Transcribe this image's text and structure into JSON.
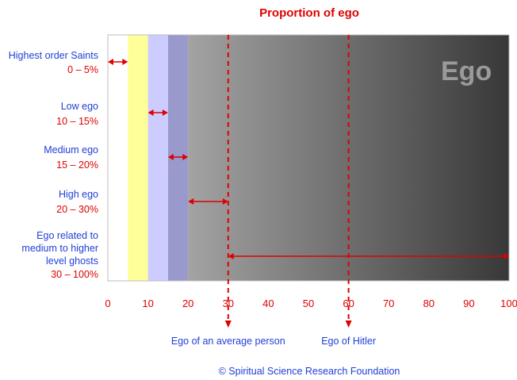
{
  "chart_data": {
    "type": "bar",
    "title": "Proportion of ego",
    "in_chart_label": "Ego",
    "xlim": [
      0,
      100
    ],
    "xticks": [
      "0",
      "10",
      "20",
      "30",
      "40",
      "50",
      "60",
      "70",
      "80",
      "90",
      "100"
    ],
    "tick_values": [
      0,
      10,
      20,
      30,
      40,
      50,
      60,
      70,
      80,
      90,
      100
    ],
    "bands": [
      {
        "from": 0,
        "to": 5,
        "color": "#ffffff"
      },
      {
        "from": 5,
        "to": 10,
        "color": "#ffff99"
      },
      {
        "from": 10,
        "to": 15,
        "color": "#ccccff"
      },
      {
        "from": 15,
        "to": 20,
        "color": "#9999cc"
      }
    ],
    "gradient": {
      "from": 20,
      "to": 100,
      "start_color": "#a3a3a3",
      "end_color": "#383838"
    },
    "categories": [
      {
        "name": [
          "Highest order Saints"
        ],
        "range_label": "0 – 5%",
        "from": 0,
        "to": 5
      },
      {
        "name": [
          "Low ego"
        ],
        "range_label": "10 – 15%",
        "from": 10,
        "to": 15
      },
      {
        "name": [
          "Medium ego"
        ],
        "range_label": "15 – 20%",
        "from": 15,
        "to": 20
      },
      {
        "name": [
          "High ego"
        ],
        "range_label": "20 – 30%",
        "from": 20,
        "to": 30
      },
      {
        "name": [
          "Ego related to",
          "medium to higher",
          "level ghosts"
        ],
        "range_label": "30 – 100%",
        "from": 30,
        "to": 100
      }
    ],
    "markers": [
      {
        "value": 30,
        "label": "Ego of an average person"
      },
      {
        "value": 60,
        "label": "Ego of Hitler"
      }
    ],
    "arrow_color": "#e00000",
    "copyright": "© Spiritual Science Research Foundation"
  }
}
